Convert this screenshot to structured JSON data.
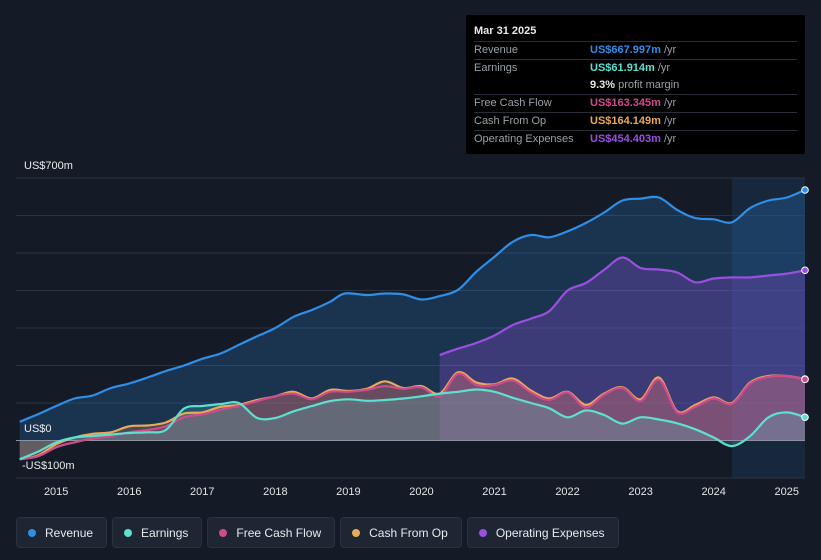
{
  "chart_data": {
    "type": "area",
    "title": "",
    "y_unit_prefix": "US$",
    "ylim": [
      -100,
      700
    ],
    "y_labels": [
      {
        "value": 700,
        "text": "US$700m"
      },
      {
        "value": 0,
        "text": "US$0"
      },
      {
        "value": -100,
        "text": "-US$100m"
      }
    ],
    "x_ticks": [
      2015,
      2016,
      2017,
      2018,
      2019,
      2020,
      2021,
      2022,
      2023,
      2024,
      2025
    ],
    "x_tick_labels": [
      "2015",
      "2016",
      "2017",
      "2018",
      "2019",
      "2020",
      "2021",
      "2022",
      "2023",
      "2024",
      "2025"
    ],
    "xlim": [
      2014.45,
      2025.25
    ],
    "forecast_start": 2024.25,
    "series": [
      {
        "key": "revenue",
        "name": "Revenue",
        "color": "#2f8ee6",
        "points": [
          [
            2014.5,
            50
          ],
          [
            2014.75,
            70
          ],
          [
            2015.0,
            92
          ],
          [
            2015.25,
            112
          ],
          [
            2015.5,
            120
          ],
          [
            2015.75,
            140
          ],
          [
            2016.0,
            152
          ],
          [
            2016.25,
            168
          ],
          [
            2016.5,
            185
          ],
          [
            2016.75,
            200
          ],
          [
            2017.0,
            218
          ],
          [
            2017.25,
            232
          ],
          [
            2017.5,
            255
          ],
          [
            2017.75,
            278
          ],
          [
            2018.0,
            300
          ],
          [
            2018.25,
            330
          ],
          [
            2018.5,
            348
          ],
          [
            2018.75,
            370
          ],
          [
            2018.95,
            392
          ],
          [
            2019.25,
            388
          ],
          [
            2019.5,
            392
          ],
          [
            2019.75,
            390
          ],
          [
            2020.0,
            376
          ],
          [
            2020.25,
            385
          ],
          [
            2020.5,
            402
          ],
          [
            2020.75,
            450
          ],
          [
            2021.0,
            490
          ],
          [
            2021.25,
            530
          ],
          [
            2021.5,
            548
          ],
          [
            2021.75,
            542
          ],
          [
            2022.0,
            558
          ],
          [
            2022.25,
            580
          ],
          [
            2022.5,
            608
          ],
          [
            2022.75,
            640
          ],
          [
            2023.0,
            645
          ],
          [
            2023.25,
            648
          ],
          [
            2023.5,
            615
          ],
          [
            2023.75,
            593
          ],
          [
            2024.0,
            590
          ],
          [
            2024.25,
            582
          ],
          [
            2024.5,
            620
          ],
          [
            2024.75,
            640
          ],
          [
            2025.0,
            648
          ],
          [
            2025.25,
            668
          ]
        ]
      },
      {
        "key": "earnings",
        "name": "Earnings",
        "color": "#5ee0d0",
        "points": [
          [
            2014.5,
            -50
          ],
          [
            2014.75,
            -30
          ],
          [
            2015.0,
            -5
          ],
          [
            2015.25,
            8
          ],
          [
            2015.5,
            12
          ],
          [
            2015.75,
            16
          ],
          [
            2016.0,
            20
          ],
          [
            2016.25,
            22
          ],
          [
            2016.5,
            28
          ],
          [
            2016.75,
            85
          ],
          [
            2017.0,
            92
          ],
          [
            2017.25,
            97
          ],
          [
            2017.5,
            100
          ],
          [
            2017.75,
            60
          ],
          [
            2018.0,
            60
          ],
          [
            2018.25,
            78
          ],
          [
            2018.5,
            92
          ],
          [
            2018.75,
            105
          ],
          [
            2019.0,
            110
          ],
          [
            2019.25,
            106
          ],
          [
            2019.5,
            108
          ],
          [
            2019.75,
            112
          ],
          [
            2020.0,
            118
          ],
          [
            2020.25,
            125
          ],
          [
            2020.5,
            130
          ],
          [
            2020.75,
            136
          ],
          [
            2021.0,
            130
          ],
          [
            2021.25,
            114
          ],
          [
            2021.5,
            100
          ],
          [
            2021.75,
            86
          ],
          [
            2022.0,
            62
          ],
          [
            2022.25,
            80
          ],
          [
            2022.5,
            68
          ],
          [
            2022.75,
            45
          ],
          [
            2023.0,
            62
          ],
          [
            2023.25,
            56
          ],
          [
            2023.5,
            46
          ],
          [
            2023.75,
            30
          ],
          [
            2024.0,
            8
          ],
          [
            2024.25,
            -15
          ],
          [
            2024.5,
            12
          ],
          [
            2024.75,
            62
          ],
          [
            2025.0,
            75
          ],
          [
            2025.25,
            62
          ]
        ]
      },
      {
        "key": "fcf",
        "name": "Free Cash Flow",
        "color": "#d04b8e",
        "points": [
          [
            2014.5,
            -50
          ],
          [
            2014.75,
            -42
          ],
          [
            2015.0,
            -18
          ],
          [
            2015.25,
            -5
          ],
          [
            2015.5,
            5
          ],
          [
            2015.75,
            12
          ],
          [
            2016.0,
            22
          ],
          [
            2016.25,
            28
          ],
          [
            2016.5,
            38
          ],
          [
            2016.75,
            62
          ],
          [
            2017.0,
            70
          ],
          [
            2017.25,
            82
          ],
          [
            2017.5,
            92
          ],
          [
            2017.75,
            105
          ],
          [
            2018.0,
            118
          ],
          [
            2018.25,
            125
          ],
          [
            2018.5,
            110
          ],
          [
            2018.75,
            130
          ],
          [
            2019.0,
            130
          ],
          [
            2019.25,
            135
          ],
          [
            2019.5,
            145
          ],
          [
            2019.75,
            138
          ],
          [
            2020.0,
            142
          ],
          [
            2020.25,
            118
          ],
          [
            2020.5,
            178
          ],
          [
            2020.75,
            148
          ],
          [
            2021.0,
            148
          ],
          [
            2021.25,
            160
          ],
          [
            2021.5,
            128
          ],
          [
            2021.75,
            108
          ],
          [
            2022.0,
            128
          ],
          [
            2022.25,
            88
          ],
          [
            2022.5,
            122
          ],
          [
            2022.75,
            140
          ],
          [
            2023.0,
            105
          ],
          [
            2023.25,
            162
          ],
          [
            2023.5,
            75
          ],
          [
            2023.75,
            90
          ],
          [
            2024.0,
            112
          ],
          [
            2024.25,
            98
          ],
          [
            2024.5,
            152
          ],
          [
            2024.75,
            170
          ],
          [
            2025.0,
            172
          ],
          [
            2025.25,
            163
          ]
        ]
      },
      {
        "key": "cfo",
        "name": "Cash From Op",
        "color": "#e8a95a",
        "points": [
          [
            2014.5,
            -50
          ],
          [
            2014.75,
            -40
          ],
          [
            2015.0,
            -10
          ],
          [
            2015.25,
            8
          ],
          [
            2015.5,
            18
          ],
          [
            2015.75,
            22
          ],
          [
            2016.0,
            38
          ],
          [
            2016.25,
            40
          ],
          [
            2016.5,
            48
          ],
          [
            2016.75,
            72
          ],
          [
            2017.0,
            75
          ],
          [
            2017.25,
            90
          ],
          [
            2017.5,
            95
          ],
          [
            2017.75,
            108
          ],
          [
            2018.0,
            118
          ],
          [
            2018.25,
            130
          ],
          [
            2018.5,
            112
          ],
          [
            2018.75,
            135
          ],
          [
            2019.0,
            132
          ],
          [
            2019.25,
            138
          ],
          [
            2019.5,
            158
          ],
          [
            2019.75,
            140
          ],
          [
            2020.0,
            145
          ],
          [
            2020.25,
            125
          ],
          [
            2020.5,
            182
          ],
          [
            2020.75,
            155
          ],
          [
            2021.0,
            150
          ],
          [
            2021.25,
            165
          ],
          [
            2021.5,
            133
          ],
          [
            2021.75,
            112
          ],
          [
            2022.0,
            130
          ],
          [
            2022.25,
            95
          ],
          [
            2022.5,
            125
          ],
          [
            2022.75,
            142
          ],
          [
            2023.0,
            110
          ],
          [
            2023.25,
            168
          ],
          [
            2023.5,
            78
          ],
          [
            2023.75,
            95
          ],
          [
            2024.0,
            115
          ],
          [
            2024.25,
            100
          ],
          [
            2024.5,
            155
          ],
          [
            2024.75,
            172
          ],
          [
            2025.0,
            172
          ],
          [
            2025.25,
            164
          ]
        ]
      },
      {
        "key": "opex",
        "name": "Operating Expenses",
        "color": "#9b4fe0",
        "points": [
          [
            2020.25,
            228
          ],
          [
            2020.5,
            245
          ],
          [
            2020.75,
            260
          ],
          [
            2021.0,
            280
          ],
          [
            2021.25,
            308
          ],
          [
            2021.5,
            325
          ],
          [
            2021.75,
            345
          ],
          [
            2022.0,
            400
          ],
          [
            2022.25,
            420
          ],
          [
            2022.5,
            455
          ],
          [
            2022.75,
            488
          ],
          [
            2023.0,
            460
          ],
          [
            2023.25,
            456
          ],
          [
            2023.5,
            448
          ],
          [
            2023.75,
            422
          ],
          [
            2024.0,
            432
          ],
          [
            2024.25,
            435
          ],
          [
            2024.5,
            435
          ],
          [
            2024.75,
            440
          ],
          [
            2025.0,
            445
          ],
          [
            2025.25,
            454
          ]
        ]
      }
    ]
  },
  "tooltip": {
    "date": "Mar 31 2025",
    "rows": [
      {
        "label": "Revenue",
        "value": "US$667.997m",
        "unit": "/yr",
        "color": "#2f8ee6"
      },
      {
        "label": "Earnings",
        "value": "US$61.914m",
        "unit": "/yr",
        "color": "#5ee0d0"
      },
      {
        "label": "",
        "value": "9.3%",
        "unit": "profit margin",
        "color": "#e8e8e8"
      },
      {
        "label": "Free Cash Flow",
        "value": "US$163.345m",
        "unit": "/yr",
        "color": "#d04b8e"
      },
      {
        "label": "Cash From Op",
        "value": "US$164.149m",
        "unit": "/yr",
        "color": "#e8a95a"
      },
      {
        "label": "Operating Expenses",
        "value": "US$454.403m",
        "unit": "/yr",
        "color": "#9b4fe0"
      }
    ]
  },
  "legend": [
    {
      "key": "revenue",
      "label": "Revenue",
      "color": "#2f8ee6"
    },
    {
      "key": "earnings",
      "label": "Earnings",
      "color": "#5ee0d0"
    },
    {
      "key": "fcf",
      "label": "Free Cash Flow",
      "color": "#d04b8e"
    },
    {
      "key": "cfo",
      "label": "Cash From Op",
      "color": "#e8a95a"
    },
    {
      "key": "opex",
      "label": "Operating Expenses",
      "color": "#9b4fe0"
    }
  ]
}
